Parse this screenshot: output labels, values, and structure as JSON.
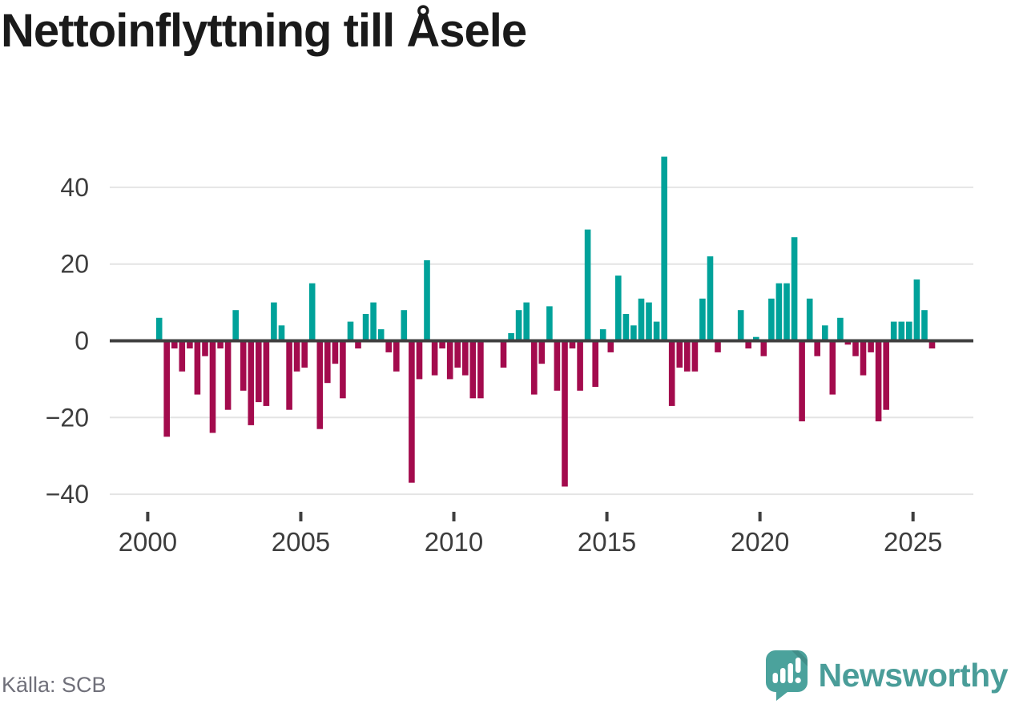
{
  "title": "Nettoinflyttning till Åsele",
  "source": "Källa: SCB",
  "logo": {
    "text": "Newsworthy",
    "color": "#4A9D99"
  },
  "chart_data": {
    "type": "bar",
    "title": "Nettoinflyttning till Åsele",
    "frequency": "quarterly",
    "start_period": "2000Q1",
    "end_period": "2025Q3",
    "values": [
      0,
      6,
      -25,
      -2,
      -8,
      -2,
      -14,
      -4,
      -24,
      -2,
      -18,
      8,
      -13,
      -22,
      -16,
      -17,
      10,
      4,
      -18,
      -8,
      -7,
      15,
      -23,
      -11,
      -6,
      -15,
      5,
      -2,
      7,
      10,
      3,
      -3,
      -8,
      8,
      -37,
      -10,
      21,
      -9,
      -2,
      -10,
      -7,
      -9,
      -15,
      -15,
      0,
      0,
      -7,
      2,
      8,
      10,
      -14,
      -6,
      9,
      -13,
      -38,
      -2,
      -13,
      29,
      -12,
      3,
      -3,
      17,
      7,
      4,
      11,
      10,
      5,
      48,
      -17,
      -7,
      -8,
      -8,
      11,
      22,
      -3,
      0,
      0,
      8,
      -2,
      1,
      -4,
      11,
      15,
      15,
      27,
      -21,
      11,
      -4,
      4,
      -14,
      6,
      -1,
      -4,
      -9,
      -3,
      -21,
      -18,
      5,
      5,
      5,
      16,
      8,
      -2
    ],
    "y_tick_values": [
      40,
      20,
      0,
      -20,
      -40
    ],
    "y_tick_labels": [
      "40",
      "20",
      "0",
      "−20",
      "−40"
    ],
    "x_tick_years": [
      2000,
      2005,
      2010,
      2015,
      2020,
      2025
    ],
    "x_tick_labels": [
      "2000",
      "2005",
      "2010",
      "2015",
      "2020",
      "2025"
    ],
    "ylim": [
      -40,
      40
    ],
    "grid": true,
    "legend": false,
    "colors": {
      "positive": "#00A29A",
      "negative": "#A30B4D",
      "axis": "#3F3F3F",
      "gridline": "#E4E4E4",
      "tick_label": "#3D3D3D"
    }
  }
}
